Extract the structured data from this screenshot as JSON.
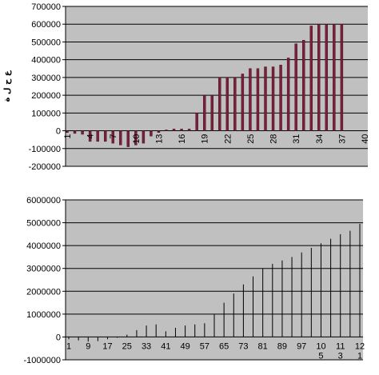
{
  "chart_data": [
    {
      "type": "bar",
      "title": "",
      "xlabel": "",
      "ylabel": "ع ح ل ة",
      "ylim": [
        -200000,
        700000
      ],
      "yticks": [
        -200000,
        -100000,
        0,
        100000,
        200000,
        300000,
        400000,
        500000,
        600000,
        700000
      ],
      "ytick_labels": [
        "-200000",
        "-100000",
        "0",
        "100000",
        "200000",
        "300000",
        "400000",
        "500000",
        "600000",
        "700000"
      ],
      "xlim": [
        1,
        40
      ],
      "xtick_labels": [
        "1",
        "4",
        "7",
        "10",
        "13",
        "16",
        "19",
        "22",
        "25",
        "28",
        "31",
        "34",
        "37",
        "40"
      ],
      "x_label_step": 3,
      "bar_color": "#7a1f3a",
      "plot_bg": "#c0c0c0",
      "grid": "horizontal",
      "categories": [
        1,
        2,
        3,
        4,
        5,
        6,
        7,
        8,
        9,
        10,
        11,
        12,
        13,
        14,
        15,
        16,
        17,
        18,
        19,
        20,
        21,
        22,
        23,
        24,
        25,
        26,
        27,
        28,
        29,
        30,
        31,
        32,
        33,
        34,
        35,
        36,
        37
      ],
      "values": [
        -10000,
        -15000,
        -20000,
        -60000,
        -60000,
        -60000,
        -70000,
        -80000,
        -90000,
        -80000,
        -70000,
        -30000,
        -10000,
        5000,
        10000,
        10000,
        10000,
        100000,
        200000,
        200000,
        300000,
        300000,
        300000,
        320000,
        350000,
        350000,
        360000,
        360000,
        370000,
        410000,
        490000,
        510000,
        590000,
        600000,
        600000,
        600000,
        600000
      ]
    },
    {
      "type": "bar",
      "title": "",
      "xlabel": "",
      "ylabel": "",
      "ylim": [
        -1000000,
        6000000
      ],
      "yticks": [
        -1000000,
        0,
        1000000,
        2000000,
        3000000,
        4000000,
        5000000,
        6000000
      ],
      "ytick_labels": [
        "-1000000",
        "0",
        "1000000",
        "2000000",
        "3000000",
        "4000000",
        "5000000",
        "6000000"
      ],
      "xtick_labels": [
        "1",
        "9",
        "17",
        "25",
        "33",
        "41",
        "49",
        "57",
        "65",
        "73",
        "81",
        "89",
        "97",
        "10",
        "11",
        "12"
      ],
      "xtick_second_line": [
        "",
        "",
        "",
        "",
        "",
        "",
        "",
        "",
        "",
        "",
        "",
        "",
        "",
        "5",
        "3",
        "1"
      ],
      "x_label_step": 8,
      "bar_color": "#000000",
      "plot_bg": "#c0c0c0",
      "grid": "horizontal",
      "x": [
        1,
        5,
        9,
        13,
        17,
        21,
        25,
        29,
        33,
        37,
        41,
        45,
        49,
        53,
        57,
        61,
        65,
        69,
        73,
        77,
        81,
        85,
        89,
        93,
        97,
        101,
        105,
        109,
        113,
        117,
        121
      ],
      "values": [
        -100000,
        -150000,
        -200000,
        -180000,
        -100000,
        0,
        100000,
        300000,
        500000,
        550000,
        250000,
        400000,
        500000,
        550000,
        600000,
        1000000,
        1500000,
        1900000,
        2300000,
        2650000,
        3000000,
        3200000,
        3350000,
        3500000,
        3700000,
        3900000,
        4100000,
        4300000,
        4500000,
        4650000,
        4950000
      ]
    }
  ]
}
